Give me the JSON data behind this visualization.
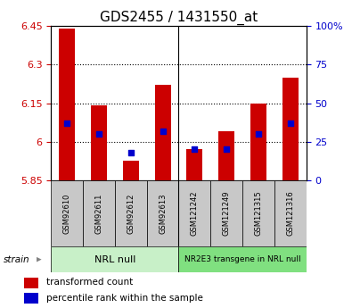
{
  "title": "GDS2455 / 1431550_at",
  "categories": [
    "GSM92610",
    "GSM92611",
    "GSM92612",
    "GSM92613",
    "GSM121242",
    "GSM121249",
    "GSM121315",
    "GSM121316"
  ],
  "bar_values": [
    6.44,
    6.14,
    5.925,
    6.22,
    5.97,
    6.04,
    6.15,
    6.25
  ],
  "bar_bottom": 5.85,
  "dot_values": [
    37,
    30,
    18,
    32,
    20,
    20,
    30,
    37
  ],
  "ylim_left": [
    5.85,
    6.45
  ],
  "ylim_right": [
    0,
    100
  ],
  "yticks_left": [
    5.85,
    6.0,
    6.15,
    6.3,
    6.45
  ],
  "ytick_labels_left": [
    "5.85",
    "6",
    "6.15",
    "6.3",
    "6.45"
  ],
  "yticks_right": [
    0,
    25,
    50,
    75,
    100
  ],
  "ytick_labels_right": [
    "0",
    "25",
    "50",
    "75",
    "100%"
  ],
  "bar_color": "#cc0000",
  "dot_color": "#0000cc",
  "group1_label": "NRL null",
  "group2_label": "NR2E3 transgene in NRL null",
  "group1_color": "#c8f0c8",
  "group2_color": "#80e080",
  "legend_bar_label": "transformed count",
  "legend_dot_label": "percentile rank within the sample",
  "strain_label": "strain",
  "background_color": "#ffffff",
  "plot_bg_color": "#ffffff",
  "title_fontsize": 11,
  "axis_label_color_left": "#cc0000",
  "axis_label_color_right": "#0000cc",
  "bar_width": 0.5,
  "dot_size": 22,
  "tick_labelsize": 8
}
